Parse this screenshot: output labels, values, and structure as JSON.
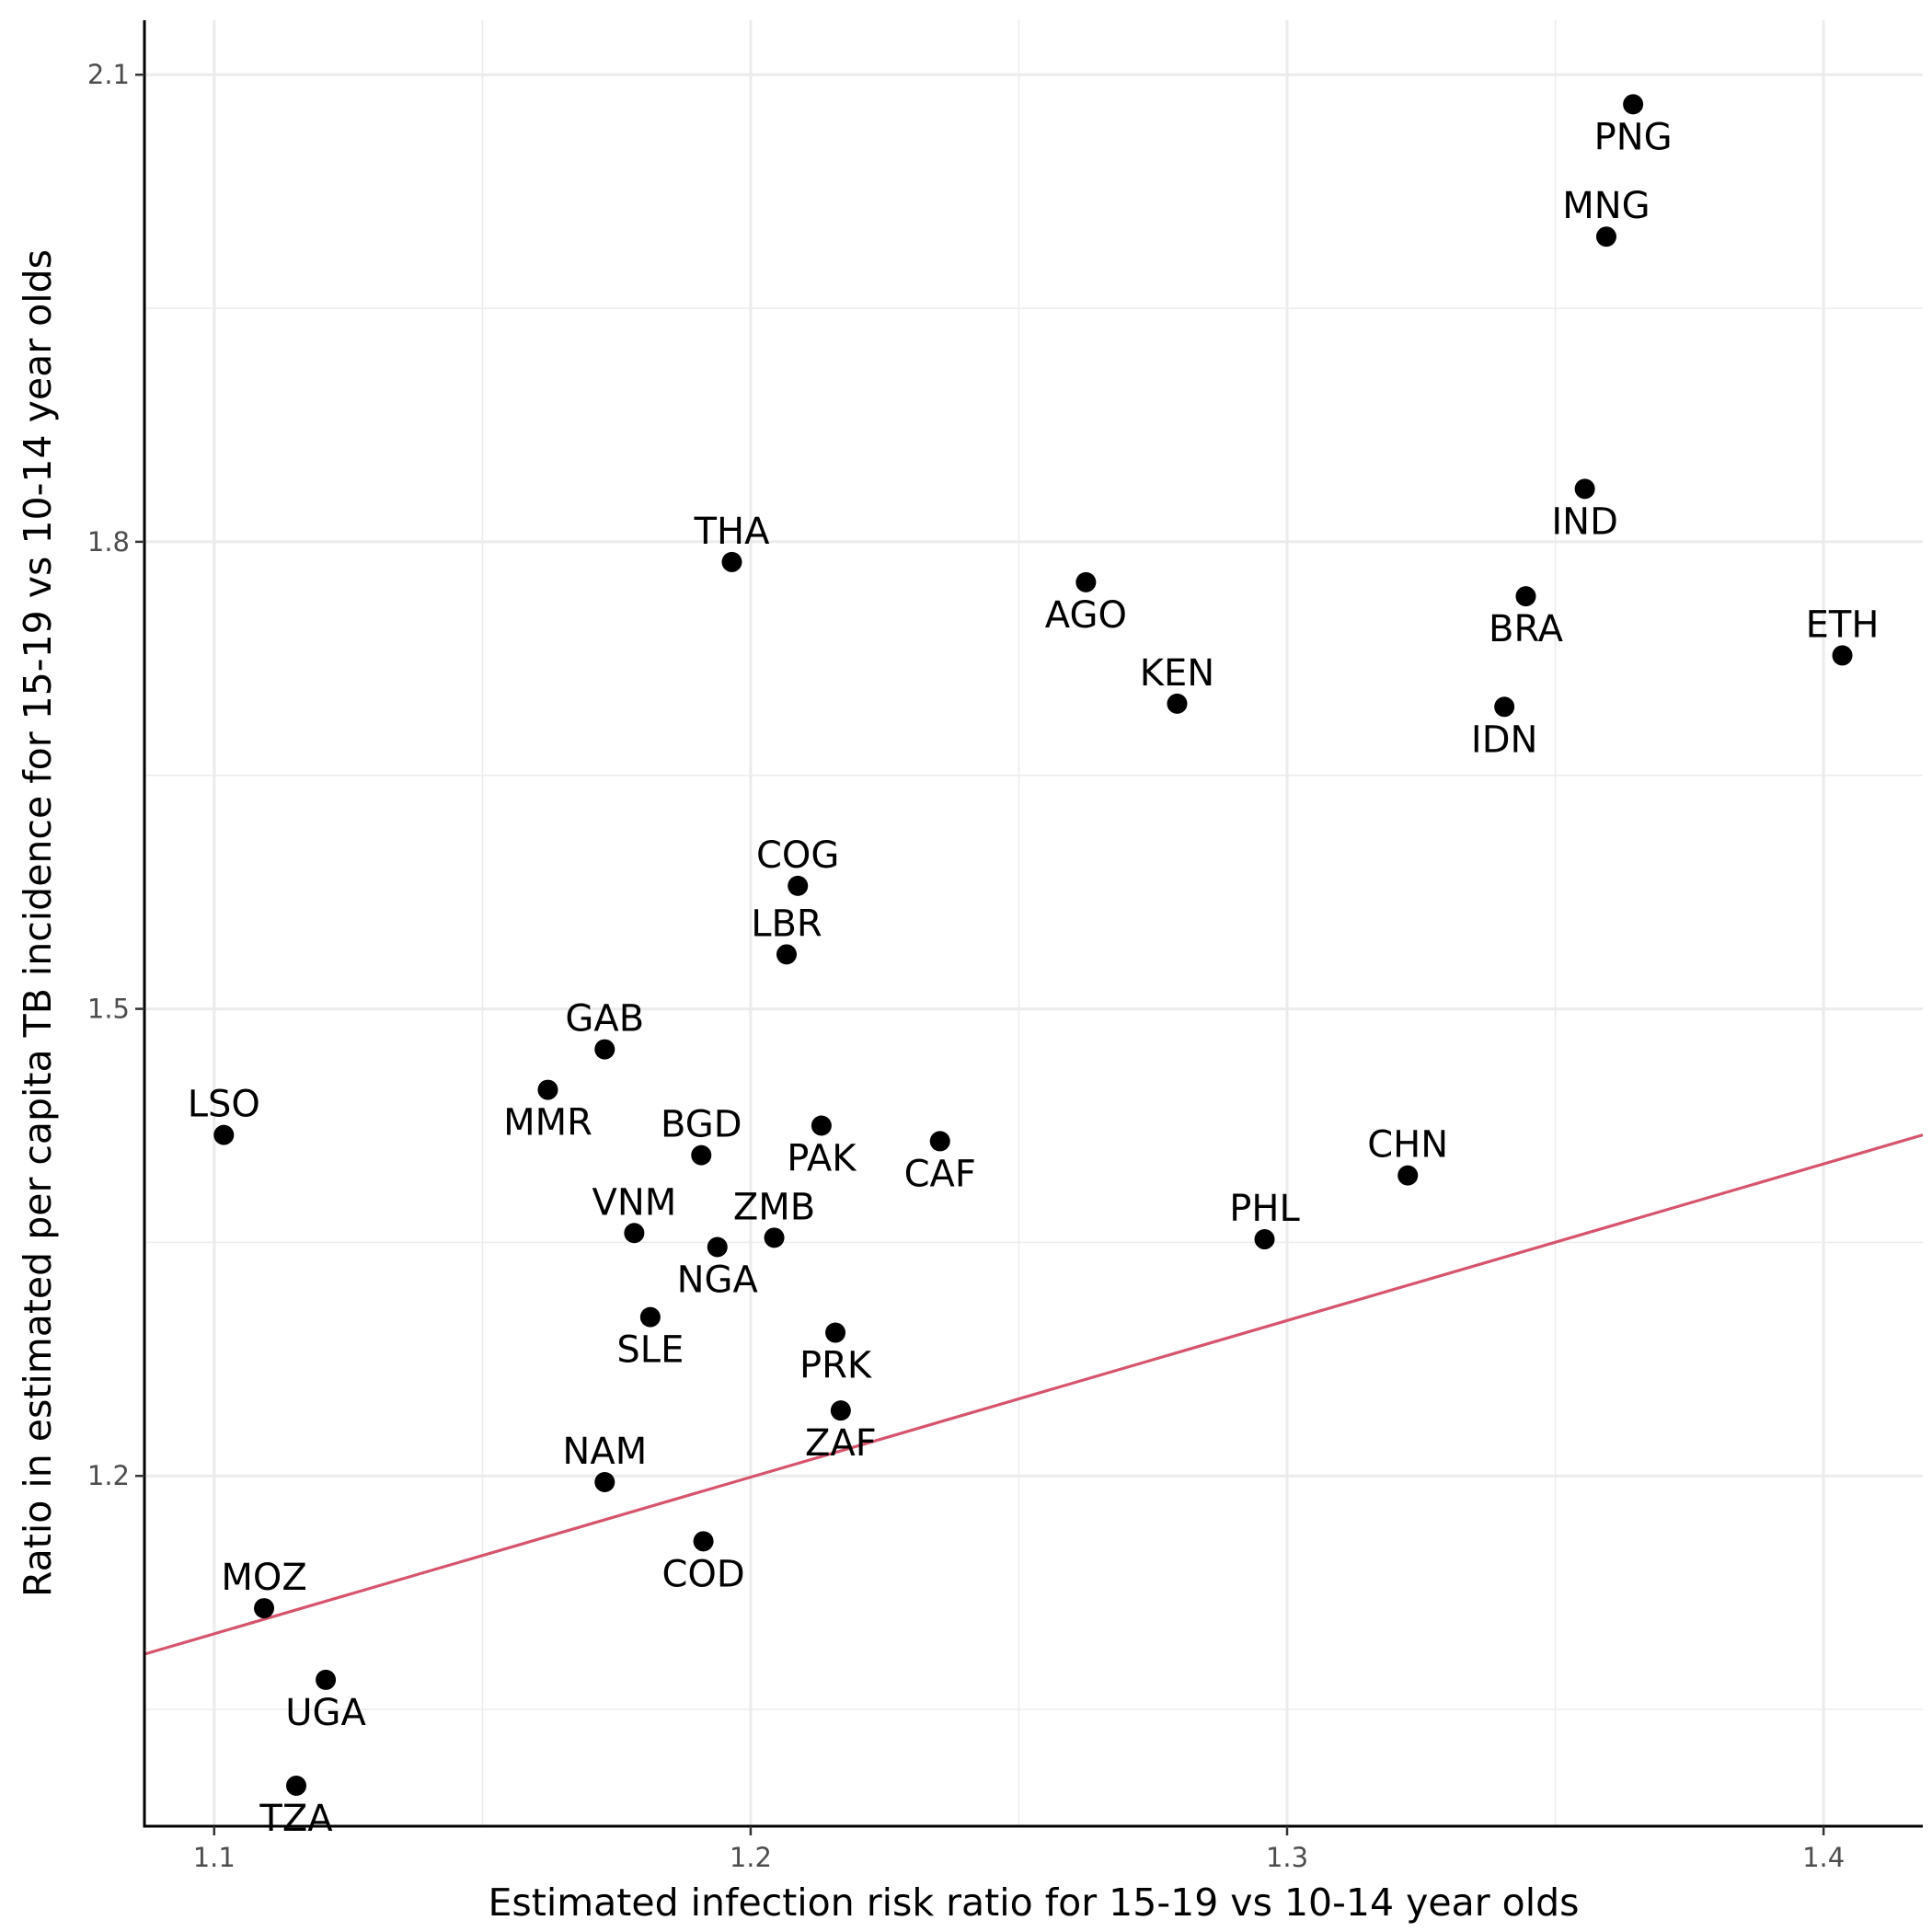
{
  "chart_data": {
    "type": "scatter",
    "title": "",
    "xlabel": "Estimated infection risk ratio for 15-19 vs 10-14 year olds",
    "ylabel": "Ratio in estimated per capita TB incidence for 15-19 vs 10-14 year olds",
    "xlim": [
      1.087,
      1.4185
    ],
    "ylim": [
      0.975,
      2.135
    ],
    "x_ticks": [
      1.1,
      1.2,
      1.3,
      1.4
    ],
    "x_tick_labels": [
      "1.1",
      "1.2",
      "1.3",
      "1.4"
    ],
    "y_ticks": [
      1.2,
      1.5,
      1.8,
      2.1
    ],
    "y_tick_labels": [
      "1.2",
      "1.5",
      "1.8",
      "2.1"
    ],
    "grid": true,
    "point_color": "#000000",
    "trend_line": {
      "color": "#d6546c",
      "x": [
        1.087,
        1.4185
      ],
      "y": [
        1.0855,
        1.419
      ]
    },
    "points": [
      {
        "label": "PNG",
        "x": 1.3645,
        "y": 2.081,
        "label_pos": "below"
      },
      {
        "label": "MNG",
        "x": 1.3595,
        "y": 1.996,
        "label_pos": "above"
      },
      {
        "label": "IND",
        "x": 1.3555,
        "y": 1.834,
        "label_pos": "below"
      },
      {
        "label": "BRA",
        "x": 1.3445,
        "y": 1.765,
        "label_pos": "below"
      },
      {
        "label": "ETH",
        "x": 1.4035,
        "y": 1.727,
        "label_pos": "above"
      },
      {
        "label": "IDN",
        "x": 1.3405,
        "y": 1.694,
        "label_pos": "below"
      },
      {
        "label": "THA",
        "x": 1.1965,
        "y": 1.787,
        "label_pos": "above"
      },
      {
        "label": "AGO",
        "x": 1.2625,
        "y": 1.774,
        "label_pos": "below"
      },
      {
        "label": "KEN",
        "x": 1.2795,
        "y": 1.696,
        "label_pos": "above"
      },
      {
        "label": "COG",
        "x": 1.2088,
        "y": 1.579,
        "label_pos": "above"
      },
      {
        "label": "LBR",
        "x": 1.2067,
        "y": 1.535,
        "label_pos": "above"
      },
      {
        "label": "GAB",
        "x": 1.1728,
        "y": 1.474,
        "label_pos": "above"
      },
      {
        "label": "MMR",
        "x": 1.1622,
        "y": 1.448,
        "label_pos": "below"
      },
      {
        "label": "LSO",
        "x": 1.1018,
        "y": 1.419,
        "label_pos": "above"
      },
      {
        "label": "BGD",
        "x": 1.1908,
        "y": 1.406,
        "label_pos": "above"
      },
      {
        "label": "PAK",
        "x": 1.2132,
        "y": 1.425,
        "label_pos": "below"
      },
      {
        "label": "CAF",
        "x": 1.2353,
        "y": 1.415,
        "label_pos": "below"
      },
      {
        "label": "CHN",
        "x": 1.3225,
        "y": 1.393,
        "label_pos": "above"
      },
      {
        "label": "VNM",
        "x": 1.1783,
        "y": 1.356,
        "label_pos": "above"
      },
      {
        "label": "ZMB",
        "x": 1.2044,
        "y": 1.353,
        "label_pos": "above"
      },
      {
        "label": "NGA",
        "x": 1.1938,
        "y": 1.347,
        "label_pos": "below"
      },
      {
        "label": "PHL",
        "x": 1.2958,
        "y": 1.352,
        "label_pos": "above"
      },
      {
        "label": "SLE",
        "x": 1.1813,
        "y": 1.302,
        "label_pos": "below"
      },
      {
        "label": "PRK",
        "x": 1.2158,
        "y": 1.292,
        "label_pos": "below"
      },
      {
        "label": "ZAF",
        "x": 1.2168,
        "y": 1.242,
        "label_pos": "below"
      },
      {
        "label": "NAM",
        "x": 1.1728,
        "y": 1.196,
        "label_pos": "above"
      },
      {
        "label": "COD",
        "x": 1.1912,
        "y": 1.158,
        "label_pos": "below"
      },
      {
        "label": "MOZ",
        "x": 1.1093,
        "y": 1.115,
        "label_pos": "above"
      },
      {
        "label": "UGA",
        "x": 1.1208,
        "y": 1.069,
        "label_pos": "below"
      },
      {
        "label": "TZA",
        "x": 1.1153,
        "y": 1.001,
        "label_pos": "below"
      }
    ]
  }
}
